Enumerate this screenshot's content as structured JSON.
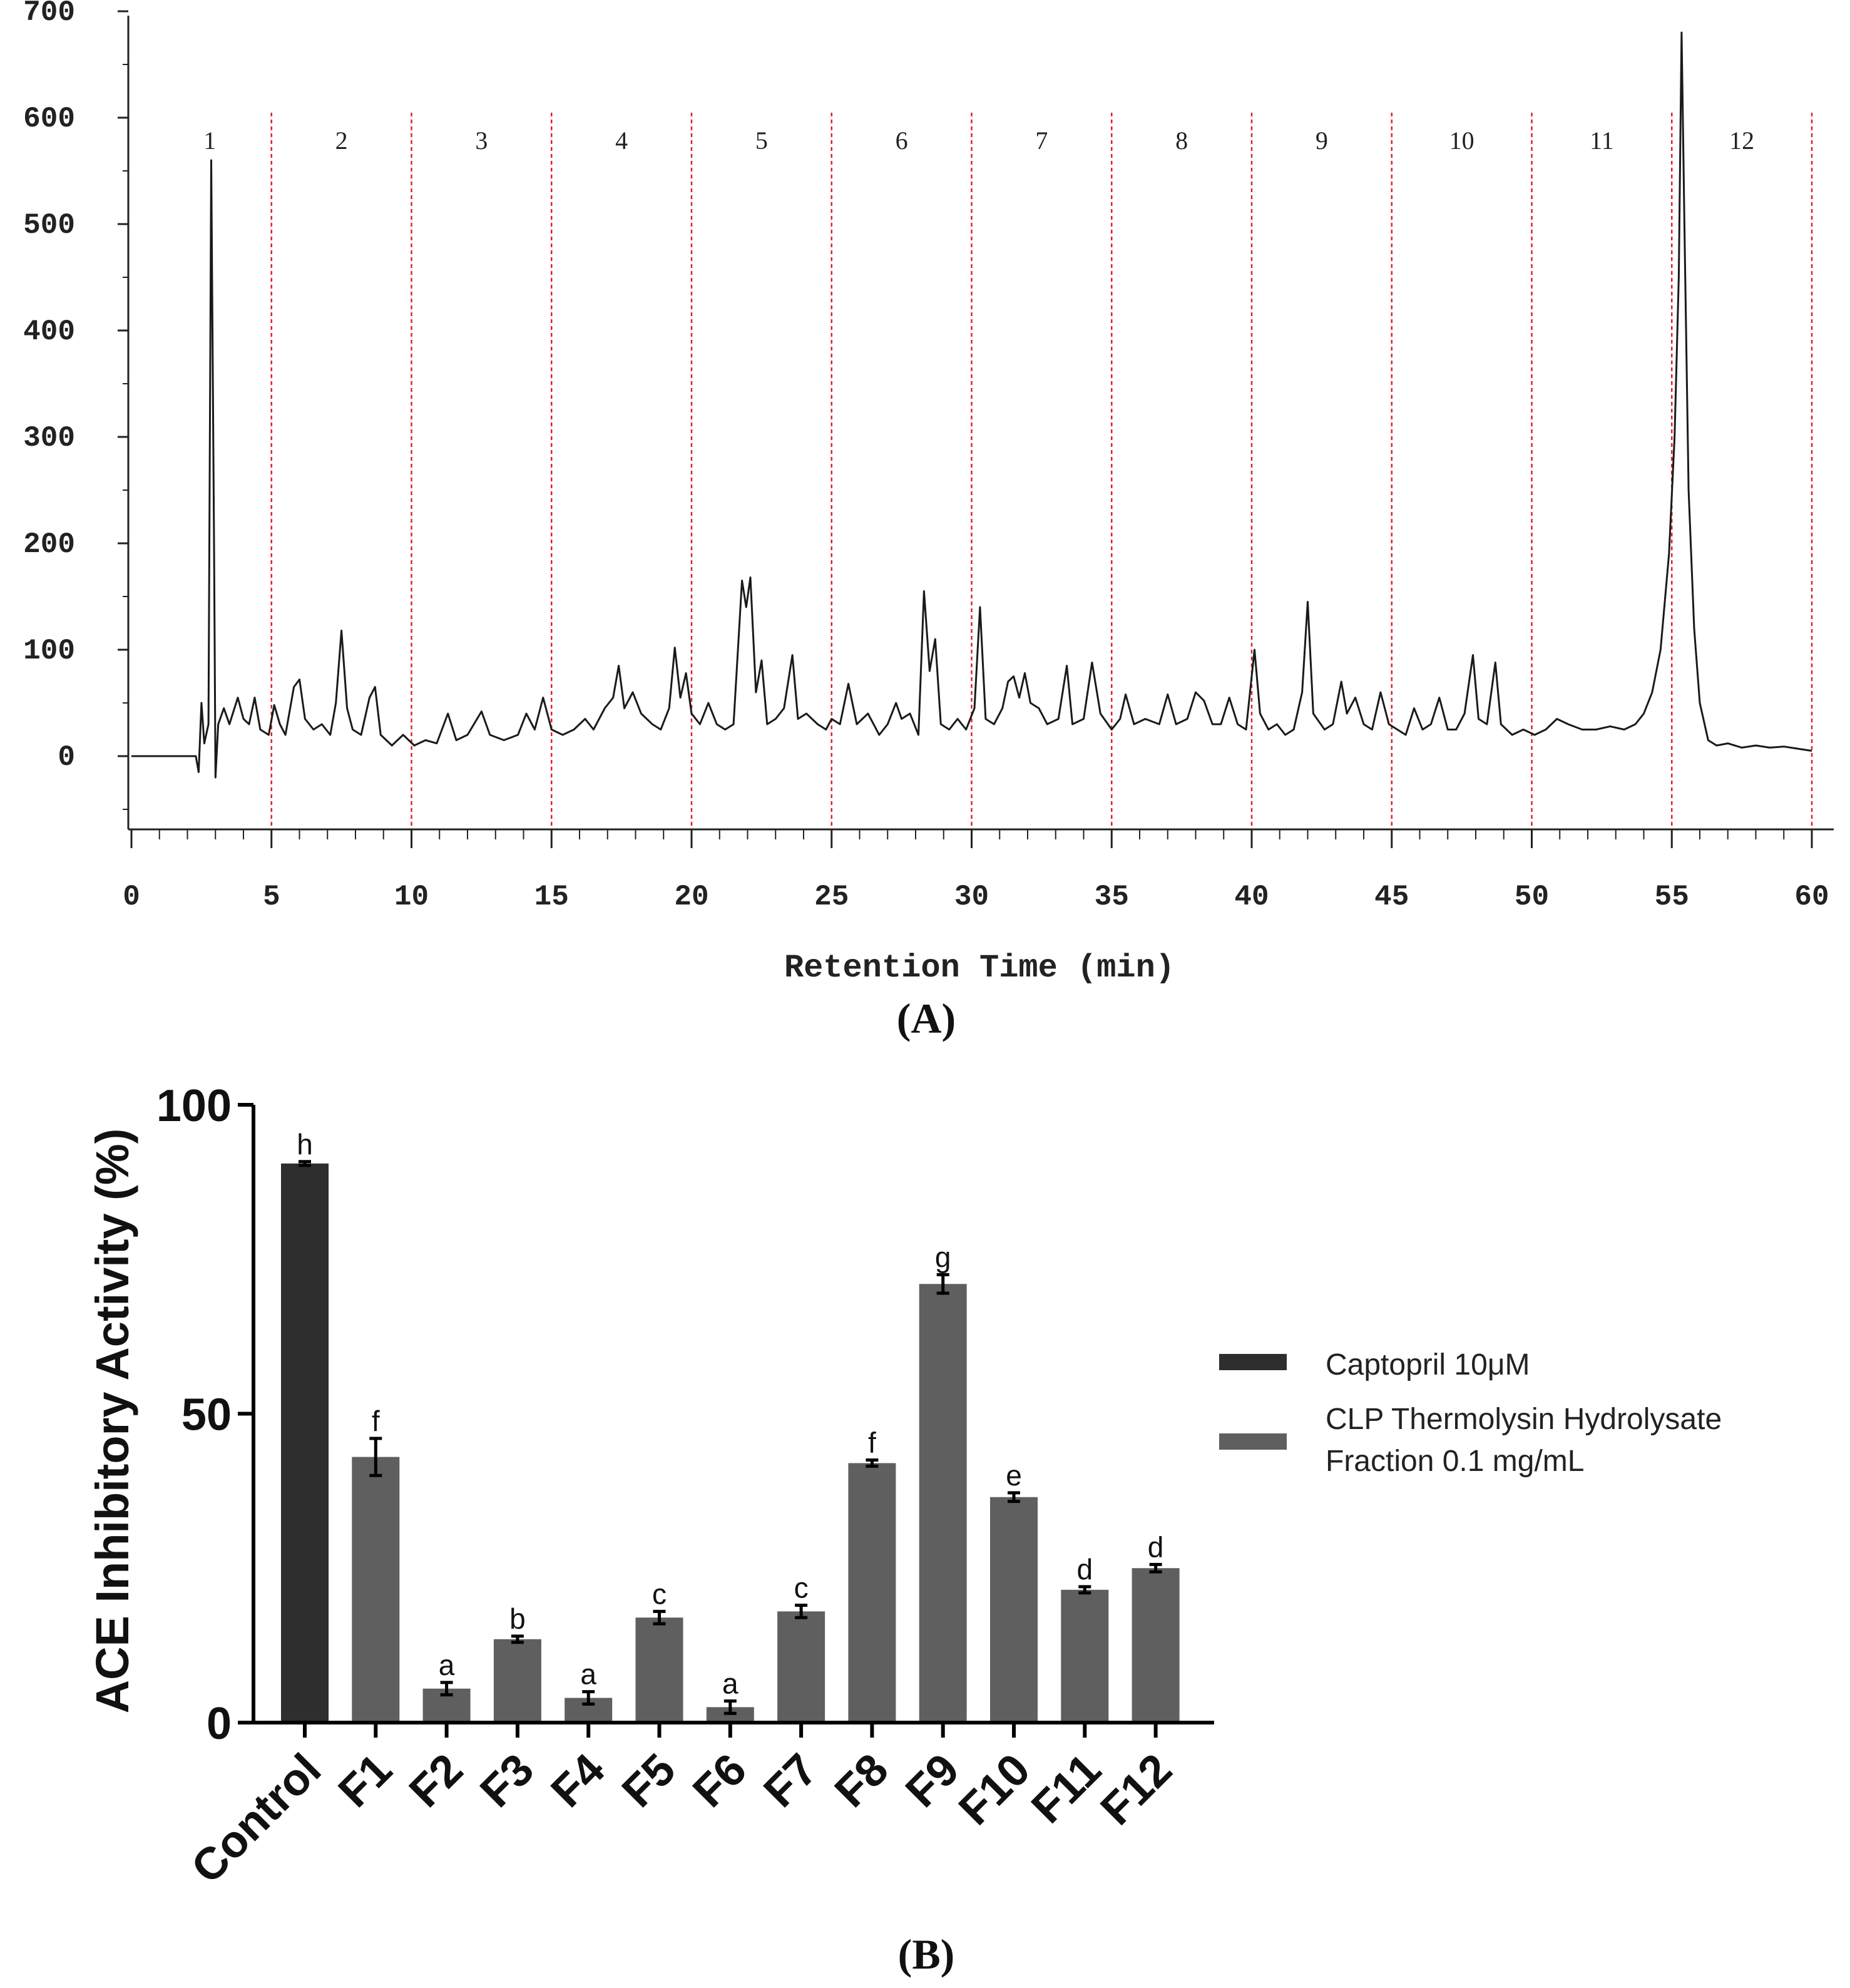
{
  "chart_data": [
    {
      "type": "line",
      "panel_label": "(A)",
      "title": "",
      "xlabel": "Retention Time (min)",
      "ylabel": "",
      "xlim": [
        0,
        60
      ],
      "ylim": [
        -60,
        700
      ],
      "x_ticks": [
        "0",
        "5",
        "10",
        "15",
        "20",
        "25",
        "30",
        "35",
        "40",
        "45",
        "50",
        "55",
        "60"
      ],
      "y_ticks": [
        "0",
        "100",
        "200",
        "300",
        "400",
        "500",
        "600",
        "700"
      ],
      "fraction_boundaries": [
        5,
        10,
        15,
        20,
        25,
        30,
        35,
        40,
        45,
        50,
        55,
        60
      ],
      "fraction_labels": [
        "1",
        "2",
        "3",
        "4",
        "5",
        "6",
        "7",
        "8",
        "9",
        "10",
        "11",
        "12"
      ],
      "boundary_color": "#e0202a",
      "line_color": "#1a1a1a",
      "series": [
        {
          "name": "chromatogram",
          "points": [
            [
              0,
              0
            ],
            [
              1.5,
              0
            ],
            [
              2.3,
              0
            ],
            [
              2.4,
              -15
            ],
            [
              2.5,
              50
            ],
            [
              2.6,
              12
            ],
            [
              2.75,
              30
            ],
            [
              2.85,
              560
            ],
            [
              2.95,
              200
            ],
            [
              3.0,
              -20
            ],
            [
              3.1,
              30
            ],
            [
              3.3,
              45
            ],
            [
              3.5,
              30
            ],
            [
              3.8,
              55
            ],
            [
              4.0,
              35
            ],
            [
              4.2,
              30
            ],
            [
              4.4,
              55
            ],
            [
              4.6,
              25
            ],
            [
              4.9,
              20
            ],
            [
              5.1,
              48
            ],
            [
              5.3,
              30
            ],
            [
              5.5,
              20
            ],
            [
              5.8,
              65
            ],
            [
              6.0,
              72
            ],
            [
              6.2,
              35
            ],
            [
              6.5,
              25
            ],
            [
              6.8,
              30
            ],
            [
              7.1,
              20
            ],
            [
              7.3,
              50
            ],
            [
              7.5,
              118
            ],
            [
              7.7,
              45
            ],
            [
              7.9,
              25
            ],
            [
              8.2,
              20
            ],
            [
              8.5,
              55
            ],
            [
              8.7,
              65
            ],
            [
              8.9,
              20
            ],
            [
              9.3,
              10
            ],
            [
              9.7,
              20
            ],
            [
              10.1,
              10
            ],
            [
              10.5,
              15
            ],
            [
              10.9,
              12
            ],
            [
              11.3,
              40
            ],
            [
              11.6,
              15
            ],
            [
              12.0,
              20
            ],
            [
              12.5,
              42
            ],
            [
              12.8,
              20
            ],
            [
              13.3,
              15
            ],
            [
              13.8,
              20
            ],
            [
              14.1,
              40
            ],
            [
              14.4,
              25
            ],
            [
              14.7,
              55
            ],
            [
              15.0,
              25
            ],
            [
              15.4,
              20
            ],
            [
              15.8,
              25
            ],
            [
              16.2,
              35
            ],
            [
              16.5,
              25
            ],
            [
              16.9,
              45
            ],
            [
              17.2,
              55
            ],
            [
              17.4,
              85
            ],
            [
              17.6,
              45
            ],
            [
              17.9,
              60
            ],
            [
              18.2,
              40
            ],
            [
              18.6,
              30
            ],
            [
              18.9,
              25
            ],
            [
              19.2,
              45
            ],
            [
              19.4,
              102
            ],
            [
              19.6,
              55
            ],
            [
              19.8,
              78
            ],
            [
              20.0,
              40
            ],
            [
              20.3,
              30
            ],
            [
              20.6,
              50
            ],
            [
              20.9,
              30
            ],
            [
              21.2,
              25
            ],
            [
              21.5,
              30
            ],
            [
              21.8,
              165
            ],
            [
              21.95,
              140
            ],
            [
              22.1,
              168
            ],
            [
              22.3,
              60
            ],
            [
              22.5,
              90
            ],
            [
              22.7,
              30
            ],
            [
              23.0,
              35
            ],
            [
              23.3,
              45
            ],
            [
              23.6,
              95
            ],
            [
              23.8,
              35
            ],
            [
              24.1,
              40
            ],
            [
              24.5,
              30
            ],
            [
              24.8,
              25
            ],
            [
              25.0,
              35
            ],
            [
              25.3,
              30
            ],
            [
              25.6,
              68
            ],
            [
              25.9,
              30
            ],
            [
              26.3,
              40
            ],
            [
              26.7,
              20
            ],
            [
              27.0,
              30
            ],
            [
              27.3,
              50
            ],
            [
              27.5,
              35
            ],
            [
              27.8,
              40
            ],
            [
              28.1,
              20
            ],
            [
              28.3,
              155
            ],
            [
              28.5,
              80
            ],
            [
              28.7,
              110
            ],
            [
              28.9,
              30
            ],
            [
              29.2,
              25
            ],
            [
              29.5,
              35
            ],
            [
              29.8,
              25
            ],
            [
              30.1,
              45
            ],
            [
              30.3,
              140
            ],
            [
              30.5,
              35
            ],
            [
              30.8,
              30
            ],
            [
              31.1,
              45
            ],
            [
              31.3,
              70
            ],
            [
              31.5,
              75
            ],
            [
              31.7,
              55
            ],
            [
              31.9,
              78
            ],
            [
              32.1,
              50
            ],
            [
              32.4,
              45
            ],
            [
              32.7,
              30
            ],
            [
              33.1,
              35
            ],
            [
              33.4,
              85
            ],
            [
              33.6,
              30
            ],
            [
              34.0,
              35
            ],
            [
              34.3,
              88
            ],
            [
              34.6,
              40
            ],
            [
              35.0,
              25
            ],
            [
              35.3,
              35
            ],
            [
              35.5,
              58
            ],
            [
              35.8,
              30
            ],
            [
              36.2,
              35
            ],
            [
              36.7,
              30
            ],
            [
              37.0,
              58
            ],
            [
              37.3,
              30
            ],
            [
              37.7,
              35
            ],
            [
              38.0,
              60
            ],
            [
              38.3,
              52
            ],
            [
              38.6,
              30
            ],
            [
              38.9,
              30
            ],
            [
              39.2,
              55
            ],
            [
              39.5,
              30
            ],
            [
              39.8,
              25
            ],
            [
              40.1,
              100
            ],
            [
              40.3,
              40
            ],
            [
              40.6,
              25
            ],
            [
              40.9,
              30
            ],
            [
              41.2,
              20
            ],
            [
              41.5,
              25
            ],
            [
              41.8,
              60
            ],
            [
              42.0,
              145
            ],
            [
              42.2,
              40
            ],
            [
              42.6,
              25
            ],
            [
              42.9,
              30
            ],
            [
              43.2,
              70
            ],
            [
              43.4,
              40
            ],
            [
              43.7,
              55
            ],
            [
              44.0,
              30
            ],
            [
              44.3,
              25
            ],
            [
              44.6,
              60
            ],
            [
              44.9,
              30
            ],
            [
              45.2,
              25
            ],
            [
              45.5,
              20
            ],
            [
              45.8,
              45
            ],
            [
              46.1,
              25
            ],
            [
              46.4,
              30
            ],
            [
              46.7,
              55
            ],
            [
              47.0,
              25
            ],
            [
              47.3,
              25
            ],
            [
              47.6,
              40
            ],
            [
              47.9,
              95
            ],
            [
              48.1,
              35
            ],
            [
              48.4,
              30
            ],
            [
              48.7,
              88
            ],
            [
              48.9,
              30
            ],
            [
              49.3,
              20
            ],
            [
              49.7,
              25
            ],
            [
              50.1,
              20
            ],
            [
              50.5,
              25
            ],
            [
              50.9,
              35
            ],
            [
              51.3,
              30
            ],
            [
              51.8,
              25
            ],
            [
              52.3,
              25
            ],
            [
              52.8,
              28
            ],
            [
              53.3,
              25
            ],
            [
              53.7,
              30
            ],
            [
              54.0,
              40
            ],
            [
              54.3,
              60
            ],
            [
              54.6,
              100
            ],
            [
              54.9,
              190
            ],
            [
              55.1,
              300
            ],
            [
              55.25,
              450
            ],
            [
              55.35,
              680
            ],
            [
              55.45,
              500
            ],
            [
              55.6,
              250
            ],
            [
              55.8,
              120
            ],
            [
              56.0,
              50
            ],
            [
              56.3,
              15
            ],
            [
              56.6,
              10
            ],
            [
              57.0,
              12
            ],
            [
              57.5,
              8
            ],
            [
              58.0,
              10
            ],
            [
              58.5,
              8
            ],
            [
              59.0,
              9
            ],
            [
              59.5,
              7
            ],
            [
              60.0,
              5
            ]
          ]
        }
      ]
    },
    {
      "type": "bar",
      "panel_label": "(B)",
      "title": "",
      "xlabel": "",
      "ylabel": "ACE Inhibitory Activity (%)",
      "ylim": [
        0,
        100
      ],
      "y_ticks": [
        "0",
        "50",
        "100"
      ],
      "categories": [
        "Control",
        "F1",
        "F2",
        "F3",
        "F4",
        "F5",
        "F6",
        "F7",
        "F8",
        "F9",
        "F10",
        "F11",
        "F12"
      ],
      "values": [
        90.5,
        43,
        5.5,
        13.5,
        4,
        17,
        2.5,
        18,
        42,
        71,
        36.5,
        21.5,
        25
      ],
      "errors": [
        0.3,
        3,
        1,
        0.5,
        1,
        1,
        1,
        1,
        0.5,
        1.5,
        0.7,
        0.5,
        0.6
      ],
      "letters": [
        "h",
        "f",
        "a",
        "b",
        "a",
        "c",
        "a",
        "c",
        "f",
        "g",
        "e",
        "d",
        "d"
      ],
      "series_of_category": [
        0,
        1,
        1,
        1,
        1,
        1,
        1,
        1,
        1,
        1,
        1,
        1,
        1
      ],
      "series": [
        {
          "name": "Captopril 10μM",
          "color": "#2e2e2e"
        },
        {
          "name": "CLP Thermolysin Hydrolysate Fraction 0.1 mg/mL",
          "name_line1": "CLP Thermolysin Hydrolysate",
          "name_line2": "Fraction 0.1 mg/mL",
          "color": "#5f5f5f"
        }
      ],
      "legend_position": "right"
    }
  ]
}
